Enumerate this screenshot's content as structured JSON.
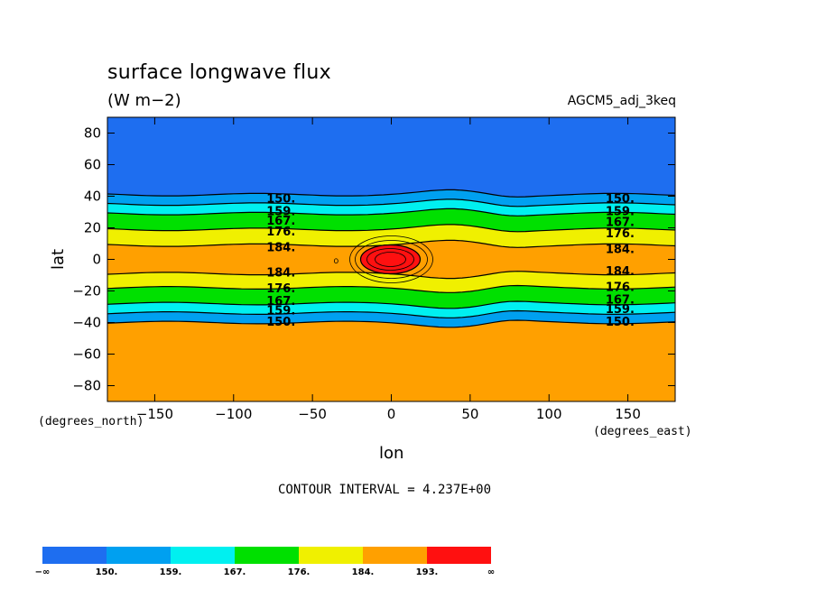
{
  "chart_data": {
    "type": "heatmap",
    "title": "surface longwave flux",
    "units": "(W m−2)",
    "run_label": "AGCM5_adj_3keq",
    "xlabel": "lon",
    "ylabel": "lat",
    "x_unit_note": "(degrees_east)",
    "y_unit_note": "(degrees_north)",
    "xlim": [
      -180,
      180
    ],
    "ylim": [
      -90,
      90
    ],
    "x_ticks": [
      -150,
      -100,
      -50,
      0,
      50,
      100,
      150
    ],
    "y_ticks": [
      80,
      60,
      40,
      20,
      0,
      -20,
      -40,
      -60,
      -80
    ],
    "x_tick_labels": [
      "−150",
      "−100",
      "−50",
      "0",
      "50",
      "100",
      "150"
    ],
    "y_tick_labels": [
      "80",
      "60",
      "40",
      "20",
      "0",
      "−20",
      "−40",
      "−60",
      "−80"
    ],
    "contour_interval": "CONTOUR INTERVAL = 4.237E+00",
    "levels": [
      150,
      154.2,
      158.5,
      162.7,
      167,
      171.2,
      175.4,
      179.7,
      183.9,
      188.1,
      192.4
    ],
    "colorbar": {
      "labels": [
        "−∞",
        "150.",
        "159.",
        "167.",
        "176.",
        "184.",
        "193.",
        "∞"
      ],
      "colors": [
        "#1e6ef0",
        "#00a0f0",
        "#00f0f0",
        "#00e000",
        "#f0f000",
        "#ffa000",
        "#ff1010"
      ]
    },
    "contour_labels": [
      {
        "text": "150.",
        "lat": 39,
        "lon": -70
      },
      {
        "text": "159.",
        "lat": 31,
        "lon": -70
      },
      {
        "text": "167.",
        "lat": 25,
        "lon": -70
      },
      {
        "text": "176.",
        "lat": 18,
        "lon": -70
      },
      {
        "text": "184.",
        "lat": 8,
        "lon": -70
      },
      {
        "text": "184.",
        "lat": -8,
        "lon": -70
      },
      {
        "text": "176.",
        "lat": -18,
        "lon": -70
      },
      {
        "text": "167.",
        "lat": -26,
        "lon": -70
      },
      {
        "text": "159.",
        "lat": -32,
        "lon": -70
      },
      {
        "text": "150.",
        "lat": -39,
        "lon": -70
      },
      {
        "text": "150.",
        "lat": 39,
        "lon": 145
      },
      {
        "text": "159.",
        "lat": 31,
        "lon": 145
      },
      {
        "text": "167.",
        "lat": 24,
        "lon": 145
      },
      {
        "text": "176.",
        "lat": 17,
        "lon": 145
      },
      {
        "text": "184.",
        "lat": 7,
        "lon": 145
      },
      {
        "text": "184.",
        "lat": -7,
        "lon": 145
      },
      {
        "text": "176.",
        "lat": -17,
        "lon": 145
      },
      {
        "text": "167.",
        "lat": -25,
        "lon": 145
      },
      {
        "text": "159.",
        "lat": -31,
        "lon": 145
      },
      {
        "text": "150.",
        "lat": -39,
        "lon": 145
      }
    ],
    "bands_north": [
      {
        "lat": 41,
        "color_index": 1
      },
      {
        "lat": 35,
        "color_index": 2
      },
      {
        "lat": 29,
        "color_index": 3
      },
      {
        "lat": 19,
        "color_index": 4
      },
      {
        "lat": 9,
        "color_index": 5
      }
    ],
    "bands_south": [
      {
        "lat": -9,
        "color_index": 5
      },
      {
        "lat": -18,
        "color_index": 4
      },
      {
        "lat": -28,
        "color_index": 3
      },
      {
        "lat": -34,
        "color_index": 2
      },
      {
        "lat": -40,
        "color_index": 1
      }
    ],
    "hotspot": {
      "lon": 0,
      "lat": 0,
      "peak_color_index": 6
    }
  }
}
